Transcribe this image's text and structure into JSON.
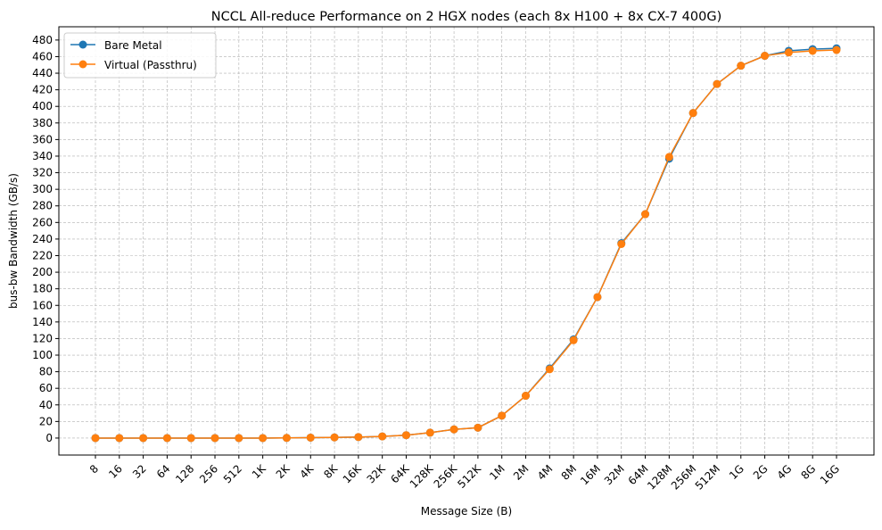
{
  "chart_data": {
    "type": "line",
    "title": "NCCL All-reduce Performance on 2 HGX nodes (each 8x H100 + 8x CX-7 400G)",
    "xlabel": "Message Size (B)",
    "ylabel": "bus-bw Bandwidth (GB/s)",
    "categories": [
      "8",
      "16",
      "32",
      "64",
      "128",
      "256",
      "512",
      "1K",
      "2K",
      "4K",
      "8K",
      "16K",
      "32K",
      "64K",
      "128K",
      "256K",
      "512K",
      "1M",
      "2M",
      "4M",
      "8M",
      "16M",
      "32M",
      "64M",
      "128M",
      "256M",
      "512M",
      "1G",
      "2G",
      "4G",
      "8G",
      "16G"
    ],
    "yticks": [
      0,
      20,
      40,
      60,
      80,
      100,
      120,
      140,
      160,
      180,
      200,
      220,
      240,
      260,
      280,
      300,
      320,
      340,
      360,
      380,
      400,
      420,
      440,
      460,
      480
    ],
    "ylim": [
      -20.5,
      496
    ],
    "grid": true,
    "legend_position": "top-left",
    "series": [
      {
        "name": "Bare Metal",
        "color": "#1f77b4",
        "values": [
          0,
          0,
          0,
          0,
          0,
          0,
          0,
          0,
          0.2,
          0.5,
          0.8,
          1.2,
          2,
          3.5,
          6.5,
          10.5,
          12.5,
          27,
          51,
          84,
          119,
          170,
          235,
          270,
          337,
          392,
          427,
          449,
          461,
          467,
          469,
          470
        ]
      },
      {
        "name": "Virtual (Passthru)",
        "color": "#ff7f0e",
        "values": [
          0,
          0,
          0,
          0,
          0,
          0,
          0,
          0,
          0.2,
          0.5,
          0.8,
          1.2,
          2,
          3.5,
          6.5,
          10.5,
          12.5,
          27,
          51,
          83,
          118,
          170,
          234,
          270,
          339,
          392,
          427,
          449,
          461,
          465,
          467,
          468
        ]
      }
    ]
  }
}
